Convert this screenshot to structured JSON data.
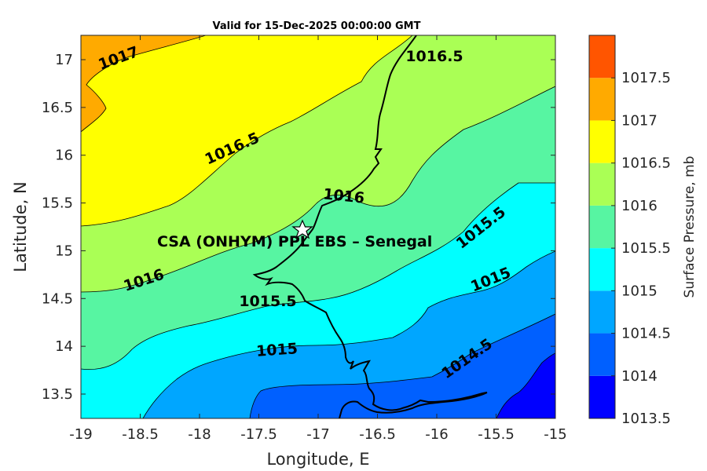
{
  "title": "Valid for 15-Dec-2025 00:00:00 GMT",
  "x_axis": {
    "label": "Longitude, E",
    "ticks": [
      "-19",
      "-18.5",
      "-18",
      "-17.5",
      "-17",
      "-16.5",
      "-16",
      "-15.5",
      "-15"
    ]
  },
  "y_axis": {
    "label": "Latitude, N",
    "ticks": [
      "17",
      "16.5",
      "16",
      "15.5",
      "15",
      "14.5",
      "14",
      "13.5"
    ]
  },
  "site": {
    "label": "CSA (ONHYM) PPL EBS  – Senegal",
    "lon": -17.13,
    "lat": 15.22
  },
  "contour_labels": [
    "1017",
    "1016.5",
    "1016.5",
    "1016",
    "1016",
    "1015.5",
    "1015.5",
    "1015",
    "1015",
    "1014.5"
  ],
  "colorbar": {
    "label": "Surface Pressure, mb",
    "ticks": [
      "1017.5",
      "1017",
      "1016.5",
      "1016",
      "1015.5",
      "1015",
      "1014.5",
      "1014",
      "1013.5"
    ],
    "bands": [
      {
        "from": 1013.5,
        "to": 1014.0,
        "color": "#0000ff"
      },
      {
        "from": 1014.0,
        "to": 1014.5,
        "color": "#0060ff"
      },
      {
        "from": 1014.5,
        "to": 1015.0,
        "color": "#00a6ff"
      },
      {
        "from": 1015.0,
        "to": 1015.5,
        "color": "#00ffff"
      },
      {
        "from": 1015.5,
        "to": 1016.0,
        "color": "#57f5a2"
      },
      {
        "from": 1016.0,
        "to": 1016.5,
        "color": "#aaff55"
      },
      {
        "from": 1016.5,
        "to": 1017.0,
        "color": "#ffff00"
      },
      {
        "from": 1017.0,
        "to": 1017.5,
        "color": "#ffaa00"
      },
      {
        "from": 1017.5,
        "to": 1018.0,
        "color": "#ff5500"
      }
    ]
  },
  "colors": {
    "coastline": "#000000",
    "contour_line": "#000000"
  }
}
